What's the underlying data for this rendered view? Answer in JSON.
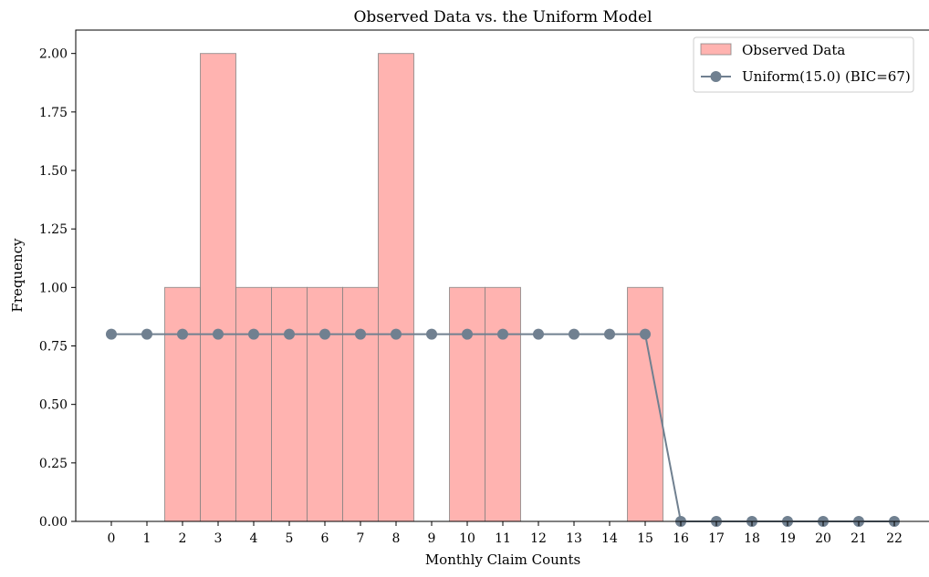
{
  "chart_data": {
    "type": "bar",
    "title": "Observed Data vs. the Uniform Model",
    "xlabel": "Monthly Claim Counts",
    "ylabel": "Frequency",
    "x_ticks": [
      0,
      1,
      2,
      3,
      4,
      5,
      6,
      7,
      8,
      9,
      10,
      11,
      12,
      13,
      14,
      15,
      16,
      17,
      18,
      19,
      20,
      21,
      22
    ],
    "xlim": [
      -1,
      23
    ],
    "ylim": [
      0,
      2.1
    ],
    "y_ticks": [
      0,
      0.25,
      0.5,
      0.75,
      1.0,
      1.25,
      1.5,
      1.75,
      2.0
    ],
    "y_tick_labels": [
      "0.00",
      "0.25",
      "0.50",
      "0.75",
      "1.00",
      "1.25",
      "1.50",
      "1.75",
      "2.00"
    ],
    "legend_position": "top-right",
    "grid": false,
    "series": [
      {
        "name": "Observed Data",
        "kind": "bar",
        "color": "#ffb3b0",
        "edge_color": "#7f7f7f",
        "x": [
          2,
          3,
          4,
          5,
          6,
          7,
          8,
          10,
          11,
          15
        ],
        "values": [
          1,
          2,
          1,
          1,
          1,
          1,
          2,
          1,
          1,
          1
        ]
      },
      {
        "name": "Uniform(15.0) (BIC=67)",
        "kind": "line",
        "color": "#708090",
        "x": [
          0,
          1,
          2,
          3,
          4,
          5,
          6,
          7,
          8,
          9,
          10,
          11,
          12,
          13,
          14,
          15,
          16,
          17,
          18,
          19,
          20,
          21,
          22
        ],
        "values": [
          0.8,
          0.8,
          0.8,
          0.8,
          0.8,
          0.8,
          0.8,
          0.8,
          0.8,
          0.8,
          0.8,
          0.8,
          0.8,
          0.8,
          0.8,
          0.8,
          0,
          0,
          0,
          0,
          0,
          0,
          0
        ]
      }
    ]
  }
}
